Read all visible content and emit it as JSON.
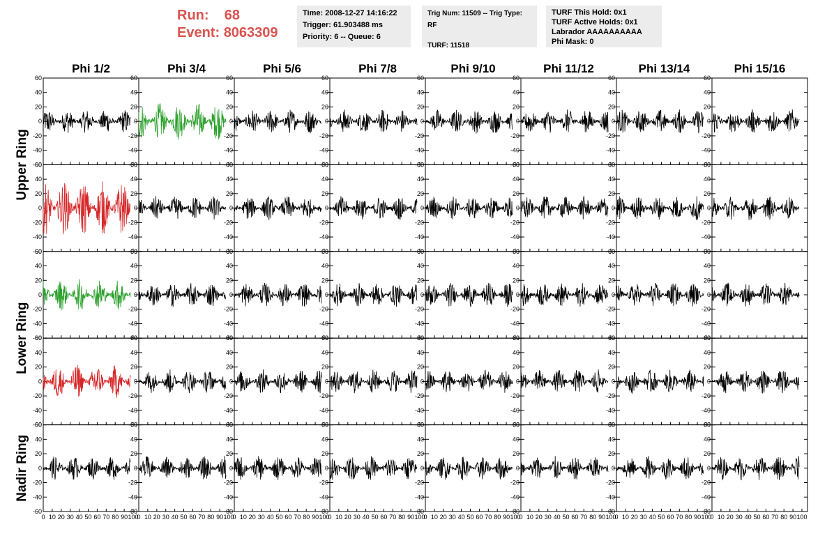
{
  "header": {
    "run_label": "Run:",
    "run_value": "68",
    "event_label": "Event:",
    "event_value": "8063309",
    "time": "Time: 2008-12-27 14:16:22",
    "trigger": "Trigger: 61.903488 ms",
    "priority": "Priority: 6 -- Queue: 6",
    "trig_line": "Trig Num: 11509 -- Trig Type: RF",
    "turf": "TURF: 11518",
    "turf_hold": "TURF This Hold: 0x1",
    "turf_active": "TURF Active Holds: 0x1",
    "labrador": "Labrador AAAAAAAAAA",
    "phi_mask": "Phi Mask: 0"
  },
  "colors": {
    "accent": "#d9534f",
    "trace_black": "#000000",
    "trace_green": "#2ca02c",
    "trace_red": "#d62728",
    "info_bg": "#ececec"
  },
  "chart_data": {
    "type": "line",
    "columns": [
      "Phi 1/2",
      "Phi 3/4",
      "Phi 5/6",
      "Phi 7/8",
      "Phi 9/10",
      "Phi 11/12",
      "Phi 13/14",
      "Phi 15/16"
    ],
    "ring_labels": [
      "Upper Ring",
      "Lower Ring",
      "Nadir Ring"
    ],
    "row_ring_index": [
      0,
      0,
      1,
      1,
      2
    ],
    "ylim": [
      -60,
      60
    ],
    "xlim": [
      0,
      100
    ],
    "y_ticks": [
      -60,
      -40,
      -20,
      0,
      20,
      40,
      60
    ],
    "x_ticks": [
      0,
      10,
      20,
      30,
      40,
      50,
      60,
      70,
      80,
      90,
      100
    ],
    "samples_per_trace": 260,
    "grid": false,
    "highlighted_traces": [
      {
        "row": 0,
        "col": 1,
        "color": "green",
        "amplitude": 26
      },
      {
        "row": 1,
        "col": 0,
        "color": "red",
        "amplitude": 38
      },
      {
        "row": 2,
        "col": 0,
        "color": "green",
        "amplitude": 22
      },
      {
        "row": 3,
        "col": 0,
        "color": "red",
        "amplitude": 24
      }
    ],
    "default_amplitude": 17
  }
}
